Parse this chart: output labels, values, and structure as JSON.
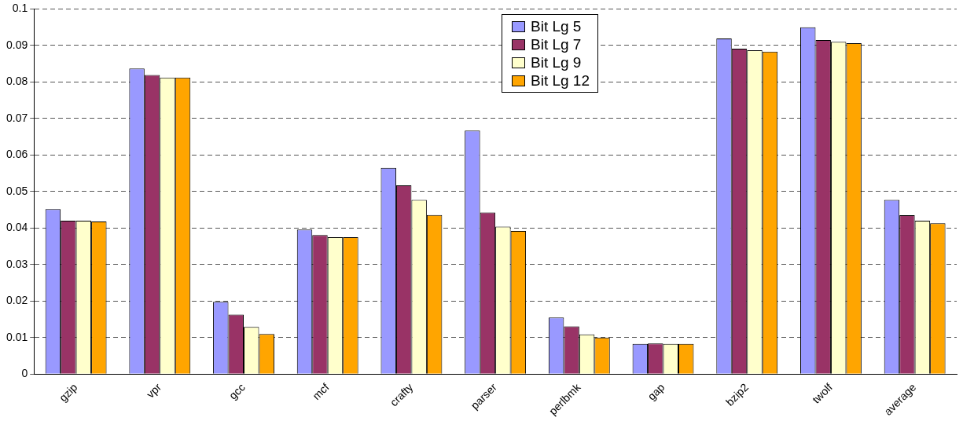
{
  "chart_data": {
    "type": "bar",
    "categories": [
      "gzip",
      "vpr",
      "gcc",
      "mcf",
      "crafty",
      "parser",
      "perlbmk",
      "gap",
      "bzip2",
      "twolf",
      "average"
    ],
    "series": [
      {
        "name": "Bit Lg 5",
        "color": "#9999ff",
        "values": [
          0.0452,
          0.0837,
          0.0198,
          0.0396,
          0.0565,
          0.0667,
          0.0155,
          0.0083,
          0.0919,
          0.095,
          0.0477
        ]
      },
      {
        "name": "Bit Lg 7",
        "color": "#993366",
        "values": [
          0.042,
          0.0819,
          0.0163,
          0.0381,
          0.0517,
          0.0443,
          0.0131,
          0.0084,
          0.0891,
          0.0915,
          0.0435
        ]
      },
      {
        "name": "Bit Lg 9",
        "color": "#ffffcc",
        "values": [
          0.042,
          0.0812,
          0.0129,
          0.0375,
          0.0477,
          0.0404,
          0.0109,
          0.0083,
          0.0887,
          0.091,
          0.042
        ]
      },
      {
        "name": "Bit Lg 12",
        "color": "#ffa500",
        "values": [
          0.0418,
          0.0812,
          0.011,
          0.0375,
          0.0436,
          0.0392,
          0.01,
          0.0083,
          0.0883,
          0.0906,
          0.0413
        ]
      }
    ],
    "ylim": [
      0,
      0.1
    ],
    "yticks": [
      0,
      0.01,
      0.02,
      0.03,
      0.04,
      0.05,
      0.06,
      0.07,
      0.08,
      0.09,
      0.1
    ],
    "grid": "y",
    "legend": "top"
  }
}
